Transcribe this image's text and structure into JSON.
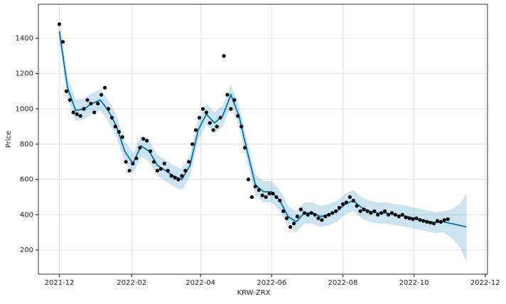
{
  "chart_data": {
    "type": "forecast",
    "xlabel": "KRW-ZRX",
    "ylabel": "Price",
    "xlim": [
      "2021-11-13",
      "2022-12-03"
    ],
    "ylim": [
      63,
      1593
    ],
    "xticks": [
      "2021-12",
      "2022-02",
      "2022-04",
      "2022-06",
      "2022-08",
      "2022-10",
      "2022-12"
    ],
    "yticks": [
      200,
      400,
      600,
      800,
      1000,
      1200,
      1400
    ],
    "grid": true,
    "series": [
      {
        "type": "scatter",
        "color": "#000000",
        "x": [
          "2021-12-01",
          "2021-12-04",
          "2021-12-07",
          "2021-12-10",
          "2021-12-13",
          "2021-12-16",
          "2021-12-19",
          "2021-12-22",
          "2021-12-25",
          "2021-12-28",
          "2021-12-31",
          "2022-01-03",
          "2022-01-06",
          "2022-01-09",
          "2022-01-12",
          "2022-01-15",
          "2022-01-18",
          "2022-01-21",
          "2022-01-24",
          "2022-01-27",
          "2022-01-30",
          "2022-02-02",
          "2022-02-05",
          "2022-02-08",
          "2022-02-11",
          "2022-02-14",
          "2022-02-17",
          "2022-02-20",
          "2022-02-23",
          "2022-02-26",
          "2022-03-01",
          "2022-03-04",
          "2022-03-07",
          "2022-03-10",
          "2022-03-13",
          "2022-03-16",
          "2022-03-19",
          "2022-03-22",
          "2022-03-25",
          "2022-03-28",
          "2022-03-31",
          "2022-04-03",
          "2022-04-06",
          "2022-04-09",
          "2022-04-12",
          "2022-04-15",
          "2022-04-18",
          "2022-04-21",
          "2022-04-24",
          "2022-04-27",
          "2022-04-30",
          "2022-05-03",
          "2022-05-06",
          "2022-05-09",
          "2022-05-12",
          "2022-05-15",
          "2022-05-18",
          "2022-05-21",
          "2022-05-24",
          "2022-05-27",
          "2022-05-30",
          "2022-06-02",
          "2022-06-05",
          "2022-06-08",
          "2022-06-11",
          "2022-06-14",
          "2022-06-17",
          "2022-06-20",
          "2022-06-23",
          "2022-06-26",
          "2022-06-29",
          "2022-07-02",
          "2022-07-05",
          "2022-07-08",
          "2022-07-11",
          "2022-07-14",
          "2022-07-17",
          "2022-07-20",
          "2022-07-23",
          "2022-07-26",
          "2022-07-29",
          "2022-08-01",
          "2022-08-04",
          "2022-08-07",
          "2022-08-10",
          "2022-08-13",
          "2022-08-16",
          "2022-08-19",
          "2022-08-22",
          "2022-08-25",
          "2022-08-28",
          "2022-08-31",
          "2022-09-03",
          "2022-09-06",
          "2022-09-09",
          "2022-09-12",
          "2022-09-15",
          "2022-09-18",
          "2022-09-21",
          "2022-09-24",
          "2022-09-27",
          "2022-09-30",
          "2022-10-03",
          "2022-10-06",
          "2022-10-09",
          "2022-10-12",
          "2022-10-15",
          "2022-10-18",
          "2022-10-21",
          "2022-10-24",
          "2022-10-27",
          "2022-10-30"
        ],
        "values": [
          1480,
          1380,
          1100,
          1050,
          980,
          970,
          960,
          1000,
          1050,
          1030,
          980,
          1030,
          1080,
          1120,
          1000,
          950,
          900,
          870,
          840,
          700,
          650,
          690,
          720,
          780,
          830,
          820,
          760,
          700,
          650,
          660,
          690,
          650,
          620,
          610,
          600,
          620,
          650,
          700,
          800,
          880,
          950,
          1000,
          980,
          920,
          880,
          900,
          950,
          1300,
          1080,
          1000,
          1050,
          960,
          900,
          780,
          600,
          500,
          560,
          540,
          510,
          500,
          520,
          520,
          500,
          480,
          420,
          380,
          330,
          350,
          390,
          430,
          410,
          400,
          410,
          400,
          380,
          370,
          390,
          400,
          410,
          420,
          440,
          460,
          470,
          500,
          480,
          450,
          420,
          430,
          420,
          410,
          420,
          400,
          410,
          420,
          400,
          410,
          400,
          390,
          400,
          385,
          380,
          375,
          380,
          370,
          365,
          360,
          355,
          350,
          365,
          360,
          370,
          375
        ]
      },
      {
        "type": "line",
        "color": "#0072B2",
        "x": [
          "2021-12-01",
          "2021-12-08",
          "2021-12-15",
          "2021-12-22",
          "2021-12-29",
          "2022-01-05",
          "2022-01-12",
          "2022-01-19",
          "2022-01-26",
          "2022-02-02",
          "2022-02-09",
          "2022-02-16",
          "2022-02-23",
          "2022-03-02",
          "2022-03-09",
          "2022-03-16",
          "2022-03-23",
          "2022-03-30",
          "2022-04-06",
          "2022-04-13",
          "2022-04-20",
          "2022-04-27",
          "2022-05-04",
          "2022-05-11",
          "2022-05-18",
          "2022-05-25",
          "2022-06-01",
          "2022-06-08",
          "2022-06-15",
          "2022-06-22",
          "2022-06-29",
          "2022-07-06",
          "2022-07-13",
          "2022-07-20",
          "2022-07-27",
          "2022-08-03",
          "2022-08-10",
          "2022-08-17",
          "2022-08-24",
          "2022-08-31",
          "2022-09-07",
          "2022-09-14",
          "2022-09-21",
          "2022-09-28",
          "2022-10-05",
          "2022-10-12",
          "2022-10-19",
          "2022-10-26",
          "2022-11-02",
          "2022-11-09",
          "2022-11-15"
        ],
        "values": [
          1440,
          1120,
          990,
          1000,
          1030,
          1050,
          990,
          900,
          760,
          690,
          790,
          760,
          680,
          650,
          620,
          600,
          680,
          880,
          970,
          920,
          960,
          1080,
          960,
          760,
          570,
          530,
          530,
          480,
          390,
          360,
          410,
          410,
          390,
          400,
          420,
          460,
          480,
          440,
          420,
          410,
          410,
          400,
          395,
          385,
          375,
          365,
          355,
          360,
          350,
          340,
          330
        ],
        "lower": [
          1380,
          1060,
          930,
          940,
          970,
          990,
          930,
          840,
          700,
          630,
          730,
          700,
          620,
          590,
          560,
          540,
          620,
          820,
          910,
          860,
          900,
          1020,
          900,
          700,
          510,
          470,
          470,
          420,
          330,
          300,
          350,
          350,
          330,
          340,
          360,
          400,
          420,
          380,
          360,
          350,
          350,
          340,
          335,
          325,
          315,
          305,
          295,
          300,
          270,
          220,
          135
        ],
        "upper": [
          1500,
          1180,
          1050,
          1060,
          1090,
          1110,
          1050,
          960,
          820,
          750,
          850,
          820,
          740,
          710,
          680,
          660,
          740,
          940,
          1030,
          980,
          1020,
          1140,
          1020,
          820,
          630,
          590,
          590,
          540,
          450,
          420,
          470,
          470,
          450,
          460,
          480,
          520,
          540,
          500,
          480,
          470,
          470,
          460,
          455,
          445,
          435,
          425,
          415,
          420,
          430,
          460,
          520
        ]
      }
    ]
  }
}
